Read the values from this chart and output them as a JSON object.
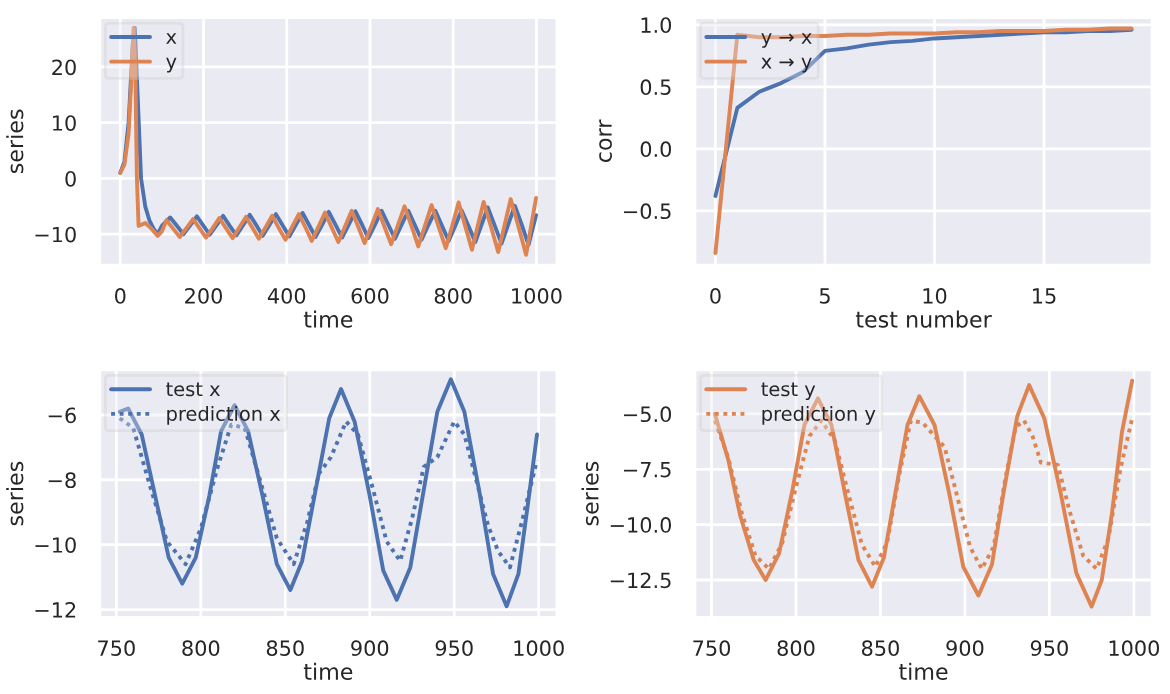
{
  "chart_data": [
    {
      "type": "line",
      "xlabel": "time",
      "ylabel": "series",
      "xlim": [
        -50,
        1050
      ],
      "ylim": [
        -15.6,
        28.9
      ],
      "xticks": [
        0,
        200,
        400,
        600,
        800,
        1000
      ],
      "yticks": [
        {
          "value": -10,
          "label": "−10"
        },
        0,
        10,
        20
      ],
      "grid": true,
      "legend": "top left",
      "series": [
        {
          "name": "x",
          "color": "#4c72b0",
          "x": [
            0,
            10,
            20,
            30,
            35,
            40,
            50,
            60,
            70,
            80,
            90,
            100,
            120,
            136,
            152,
            168,
            184,
            200,
            215,
            231,
            247,
            263,
            279,
            295,
            311,
            327,
            342,
            358,
            374,
            390,
            406,
            422,
            438,
            454,
            469,
            485,
            501,
            517,
            533,
            549,
            565,
            581,
            596,
            612,
            628,
            644,
            660,
            676,
            692,
            708,
            724,
            740,
            757,
            773,
            789,
            805,
            820,
            837,
            853,
            868,
            883,
            900,
            916,
            932,
            948,
            965,
            981,
            999
          ],
          "values": [
            1,
            3,
            10,
            24,
            27,
            18,
            0,
            -5,
            -7.5,
            -9,
            -10,
            -8.5,
            -7.0,
            -8.5,
            -10.0,
            -8.4,
            -6.8,
            -8.5,
            -10.1,
            -8.4,
            -6.7,
            -8.5,
            -10.2,
            -8.4,
            -6.5,
            -8.4,
            -10.3,
            -8.4,
            -6.4,
            -8.4,
            -10.4,
            -8.3,
            -6.2,
            -8.4,
            -10.5,
            -8.3,
            -6.0,
            -8.3,
            -10.6,
            -8.3,
            -5.9,
            -8.3,
            -10.7,
            -8.3,
            -5.8,
            -8.3,
            -10.8,
            -8.3,
            -5.8,
            -8.4,
            -11.0,
            -8.4,
            -5.8,
            -8.5,
            -11.2,
            -8.5,
            -5.7,
            -8.6,
            -11.4,
            -8.3,
            -5.2,
            -8.5,
            -11.7,
            -8.3,
            -4.9,
            -8.4,
            -11.9,
            -6.6
          ]
        },
        {
          "name": "y",
          "color": "#dd8452",
          "x": [
            0,
            10,
            20,
            28,
            32,
            36,
            40,
            44,
            60,
            75,
            90,
            100,
            111,
            127,
            143,
            159,
            175,
            191,
            206,
            222,
            238,
            254,
            270,
            286,
            302,
            318,
            333,
            349,
            365,
            381,
            397,
            413,
            429,
            445,
            460,
            476,
            492,
            508,
            524,
            540,
            556,
            572,
            587,
            603,
            619,
            635,
            651,
            667,
            683,
            700,
            716,
            732,
            748,
            765,
            782,
            798,
            813,
            829,
            845,
            859,
            873,
            891,
            908,
            923,
            938,
            957,
            975,
            999
          ],
          "values": [
            1,
            2.5,
            8,
            20,
            27,
            20,
            0,
            -8.5,
            -8,
            -9,
            -10.3,
            -9.5,
            -7.5,
            -9.0,
            -10.5,
            -8.9,
            -7.3,
            -9.0,
            -10.6,
            -8.9,
            -7.1,
            -8.9,
            -10.7,
            -8.8,
            -6.9,
            -8.9,
            -10.8,
            -8.8,
            -6.7,
            -8.9,
            -11.0,
            -8.7,
            -6.4,
            -8.8,
            -11.2,
            -8.7,
            -6.1,
            -8.8,
            -11.4,
            -8.6,
            -5.8,
            -8.7,
            -11.6,
            -8.6,
            -5.5,
            -8.7,
            -11.8,
            -8.4,
            -5.0,
            -8.6,
            -12.2,
            -8.5,
            -4.8,
            -8.7,
            -12.5,
            -8.4,
            -4.3,
            -8.6,
            -12.8,
            -8.5,
            -4.2,
            -8.7,
            -13.2,
            -8.5,
            -3.7,
            -8.7,
            -13.7,
            -3.5
          ]
        }
      ]
    },
    {
      "type": "line",
      "xlabel": "test number",
      "ylabel": "corr",
      "xlim": [
        -0.95,
        19.95
      ],
      "ylim": [
        -0.94,
        1.06
      ],
      "xticks": [
        0,
        5,
        10,
        15
      ],
      "yticks": [
        {
          "value": -0.5,
          "label": "−0.5"
        },
        {
          "value": 0,
          "label": "0.0"
        },
        0.5,
        {
          "value": 1,
          "label": "1.0"
        }
      ],
      "grid": true,
      "legend": "top left",
      "x": [
        0,
        1,
        2,
        3,
        4,
        5,
        6,
        7,
        8,
        9,
        10,
        11,
        12,
        13,
        14,
        15,
        16,
        17,
        18,
        19
      ],
      "series": [
        {
          "name": "y → x",
          "color": "#4c72b0",
          "values": [
            -0.38,
            0.33,
            0.46,
            0.53,
            0.62,
            0.79,
            0.81,
            0.84,
            0.86,
            0.87,
            0.89,
            0.9,
            0.91,
            0.92,
            0.93,
            0.94,
            0.94,
            0.95,
            0.95,
            0.96
          ]
        },
        {
          "name": "x → y",
          "color": "#dd8452",
          "values": [
            -0.84,
            0.92,
            0.9,
            0.9,
            0.91,
            0.91,
            0.92,
            0.92,
            0.93,
            0.93,
            0.93,
            0.94,
            0.94,
            0.95,
            0.95,
            0.95,
            0.96,
            0.96,
            0.97,
            0.97
          ]
        }
      ]
    },
    {
      "type": "line",
      "xlabel": "time",
      "ylabel": "series",
      "xlim": [
        740,
        1011
      ],
      "ylim": [
        -12.25,
        -4.6
      ],
      "xticks": [
        750,
        800,
        850,
        900,
        950,
        1000
      ],
      "yticks": [
        {
          "value": -12,
          "label": "−12"
        },
        {
          "value": -10,
          "label": "−10"
        },
        {
          "value": -8,
          "label": "−8"
        },
        {
          "value": -6,
          "label": "−6"
        }
      ],
      "grid": true,
      "legend": "top left",
      "series": [
        {
          "name": "test x",
          "color": "#4c72b0",
          "line_style": "solid",
          "x": [
            752,
            757,
            765,
            773,
            781,
            789,
            797,
            805,
            812,
            820,
            828,
            837,
            845,
            853,
            860,
            868,
            876,
            883,
            891,
            900,
            908,
            916,
            924,
            932,
            940,
            948,
            956,
            965,
            973,
            981,
            988,
            994,
            999
          ],
          "values": [
            -5.9,
            -5.8,
            -6.6,
            -8.5,
            -10.4,
            -11.2,
            -10.4,
            -8.5,
            -6.5,
            -5.7,
            -6.5,
            -8.6,
            -10.6,
            -11.4,
            -10.5,
            -8.3,
            -6.1,
            -5.2,
            -6.2,
            -8.5,
            -10.8,
            -11.7,
            -10.7,
            -8.3,
            -5.9,
            -4.9,
            -5.9,
            -8.4,
            -10.9,
            -11.9,
            -10.9,
            -8.6,
            -6.6
          ]
        },
        {
          "name": "prediction x",
          "color": "#4c72b0",
          "line_style": "dotted",
          "x": [
            752,
            760,
            770,
            780,
            791,
            800,
            810,
            818,
            826,
            835,
            845,
            855,
            863,
            870,
            877,
            886,
            893,
            902,
            910,
            918,
            925,
            932,
            940,
            950,
            956,
            963,
            970,
            976,
            983,
            990,
            999
          ],
          "values": [
            -6.1,
            -6.4,
            -8.2,
            -9.9,
            -10.6,
            -9.5,
            -7.6,
            -6.3,
            -6.4,
            -8.0,
            -9.8,
            -10.6,
            -9.3,
            -7.8,
            -7.3,
            -6.2,
            -6.6,
            -8.3,
            -9.9,
            -10.5,
            -9.2,
            -7.6,
            -7.3,
            -6.2,
            -6.6,
            -8.0,
            -9.4,
            -10.2,
            -10.7,
            -9.3,
            -7.4
          ]
        }
      ]
    },
    {
      "type": "line",
      "xlabel": "time",
      "ylabel": "series",
      "xlim": [
        740,
        1011
      ],
      "ylim": [
        -14.2,
        -3.0
      ],
      "xticks": [
        750,
        800,
        850,
        900,
        950,
        1000
      ],
      "yticks": [
        {
          "value": -12.5,
          "label": "−12.5"
        },
        {
          "value": -10,
          "label": "−10.0"
        },
        {
          "value": -7.5,
          "label": "−7.5"
        },
        {
          "value": -5,
          "label": "−5.0"
        }
      ],
      "grid": true,
      "legend": "top left",
      "series": [
        {
          "name": "test y",
          "color": "#dd8452",
          "line_style": "solid",
          "x": [
            752,
            760,
            767,
            775,
            782,
            790,
            798,
            805,
            813,
            821,
            829,
            837,
            845,
            852,
            859,
            866,
            873,
            882,
            891,
            899,
            908,
            916,
            923,
            931,
            938,
            947,
            957,
            966,
            975,
            981,
            987,
            993,
            999
          ],
          "values": [
            -5.0,
            -7.1,
            -9.6,
            -11.6,
            -12.5,
            -11.3,
            -8.4,
            -5.5,
            -4.3,
            -5.5,
            -8.6,
            -11.6,
            -12.8,
            -11.5,
            -8.5,
            -5.5,
            -4.2,
            -5.5,
            -8.7,
            -11.9,
            -13.2,
            -11.8,
            -8.5,
            -5.1,
            -3.7,
            -5.2,
            -8.7,
            -12.2,
            -13.7,
            -12.5,
            -9.5,
            -5.8,
            -3.5
          ]
        },
        {
          "name": "prediction y",
          "color": "#dd8452",
          "line_style": "dotted",
          "x": [
            752,
            760,
            768,
            776,
            784,
            792,
            800,
            808,
            815,
            823,
            831,
            839,
            847,
            854,
            861,
            868,
            875,
            882,
            888,
            895,
            903,
            910,
            917,
            924,
            930,
            935,
            940,
            945,
            955,
            962,
            970,
            978,
            985,
            992,
            999
          ],
          "values": [
            -5.3,
            -7.0,
            -9.5,
            -11.4,
            -12.0,
            -10.8,
            -8.3,
            -6.0,
            -5.3,
            -6.2,
            -8.6,
            -10.9,
            -11.9,
            -10.8,
            -7.8,
            -5.3,
            -5.4,
            -6.0,
            -6.5,
            -8.6,
            -11.0,
            -12.0,
            -11.0,
            -7.9,
            -5.6,
            -5.3,
            -6.0,
            -7.2,
            -7.3,
            -9.4,
            -11.4,
            -12.0,
            -10.6,
            -7.5,
            -5.2
          ]
        }
      ]
    }
  ]
}
